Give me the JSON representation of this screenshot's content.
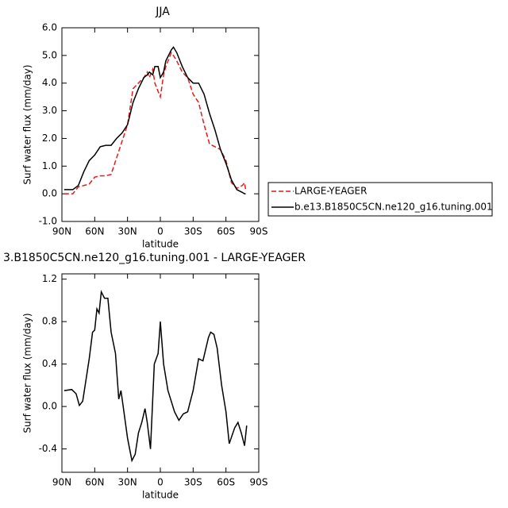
{
  "chart_data": [
    {
      "type": "line",
      "title": "JJA",
      "x_label": "latitude",
      "y_label": "Surf water flux (mm/day)",
      "x": [
        88,
        85,
        80,
        75,
        70,
        65,
        60,
        55,
        50,
        45,
        40,
        35,
        30,
        25,
        20,
        15,
        12,
        10,
        7,
        5,
        2,
        0,
        -3,
        -5,
        -10,
        -12,
        -15,
        -20,
        -25,
        -30,
        -35,
        -40,
        -45,
        -50,
        -55,
        -60,
        -65,
        -70,
        -75,
        -77,
        -78
      ],
      "series": [
        {
          "name": "LARGE-YEAGER",
          "color": "#e41a1c",
          "dash": true,
          "values": [
            0.0,
            0.0,
            0.0,
            0.25,
            0.3,
            0.35,
            0.6,
            0.65,
            0.65,
            0.7,
            1.3,
            1.9,
            2.5,
            3.8,
            4.0,
            4.2,
            4.4,
            4.2,
            4.5,
            4.0,
            3.7,
            3.5,
            4.3,
            4.6,
            5.1,
            5.0,
            4.8,
            4.4,
            4.2,
            3.6,
            3.3,
            2.5,
            1.8,
            1.7,
            1.6,
            1.2,
            0.4,
            0.2,
            0.3,
            0.4,
            0.15
          ]
        },
        {
          "name": "b.e13.B1850C5CN.ne120_g16.tuning.001",
          "color": "#000000",
          "dash": false,
          "values": [
            0.15,
            0.15,
            0.15,
            0.3,
            0.8,
            1.2,
            1.4,
            1.7,
            1.75,
            1.75,
            2.0,
            2.2,
            2.5,
            3.3,
            3.8,
            4.2,
            4.3,
            4.4,
            4.3,
            4.6,
            4.6,
            4.2,
            4.4,
            4.8,
            5.2,
            5.3,
            5.1,
            4.6,
            4.2,
            4.0,
            4.0,
            3.6,
            2.9,
            2.3,
            1.6,
            1.1,
            0.5,
            0.15,
            0.05,
            0.0,
            0.0
          ]
        }
      ],
      "xlim": [
        90,
        -90
      ],
      "xticks": [
        {
          "value": 90,
          "label": "90N"
        },
        {
          "value": 60,
          "label": "60N"
        },
        {
          "value": 30,
          "label": "30N"
        },
        0,
        {
          "value": -30,
          "label": "30S"
        },
        {
          "value": -60,
          "label": "60S"
        },
        {
          "value": -90,
          "label": "90S"
        }
      ],
      "ylim": [
        -1,
        6
      ],
      "yticks": [
        {
          "value": -1,
          "label": "-1.0"
        },
        {
          "value": 0,
          "label": "0.0"
        },
        {
          "value": 1,
          "label": "1.0"
        },
        {
          "value": 2,
          "label": "2.0"
        },
        {
          "value": 3,
          "label": "3.0"
        },
        {
          "value": 4,
          "label": "4.0"
        },
        {
          "value": 5,
          "label": "5.0"
        },
        {
          "value": 6,
          "label": "6.0"
        }
      ],
      "legend": "right"
    },
    {
      "type": "line",
      "title": "3.B1850C5CN.ne120_g16.tuning.001 - LARGE-YEAGER",
      "x_label": "latitude",
      "y_label": "Surf water flux (mm/day)",
      "x": [
        88,
        81,
        77,
        74,
        71,
        68,
        65,
        62,
        60,
        58,
        56,
        54,
        51,
        48,
        45,
        41,
        38,
        36,
        34,
        30,
        26,
        23,
        20,
        17,
        14,
        12,
        9,
        5.5,
        2,
        0,
        -3,
        -7,
        -13,
        -17,
        -21,
        -25,
        -30,
        -35,
        -39,
        -44,
        -46,
        -49,
        -52,
        -56,
        -60,
        -63,
        -68,
        -71,
        -74,
        -77,
        -79
      ],
      "values": [
        0.15,
        0.16,
        0.12,
        0.01,
        0.05,
        0.25,
        0.45,
        0.7,
        0.72,
        0.92,
        0.88,
        1.08,
        1.02,
        1.02,
        0.7,
        0.5,
        0.07,
        0.15,
        0.0,
        -0.3,
        -0.51,
        -0.45,
        -0.25,
        -0.15,
        -0.02,
        -0.15,
        -0.4,
        0.4,
        0.5,
        0.8,
        0.4,
        0.15,
        -0.05,
        -0.13,
        -0.07,
        -0.05,
        0.15,
        0.45,
        0.43,
        0.65,
        0.7,
        0.68,
        0.55,
        0.2,
        -0.05,
        -0.35,
        -0.2,
        -0.15,
        -0.25,
        -0.37,
        -0.18
      ],
      "color": "#000000",
      "xlim": [
        90,
        -90
      ],
      "xticks": [
        {
          "value": 90,
          "label": "90N"
        },
        {
          "value": 60,
          "label": "60N"
        },
        {
          "value": 30,
          "label": "30N"
        },
        0,
        {
          "value": -30,
          "label": "30S"
        },
        {
          "value": -60,
          "label": "60S"
        },
        {
          "value": -90,
          "label": "90S"
        }
      ],
      "ylim": [
        -0.62,
        1.25
      ],
      "yticks": [
        -0.4,
        {
          "value": 0,
          "label": "0.0"
        },
        0.4,
        0.8,
        1.2
      ]
    }
  ]
}
